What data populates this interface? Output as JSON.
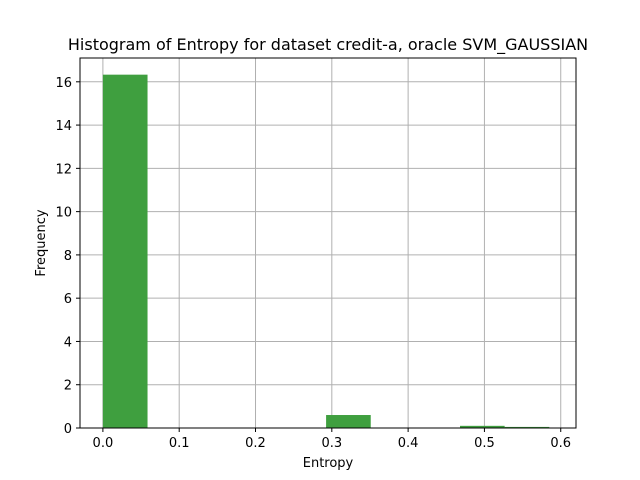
{
  "chart_data": {
    "type": "bar",
    "title": "Histogram of Entropy for dataset credit-a, oracle SVM_GAUSSIAN",
    "xlabel": "Entropy",
    "ylabel": "Frequency",
    "xlim": [
      -0.03,
      0.62
    ],
    "ylim": [
      0,
      17.1
    ],
    "xticks": [
      "0.0",
      "0.1",
      "0.2",
      "0.3",
      "0.4",
      "0.5",
      "0.6"
    ],
    "xtick_values": [
      0.0,
      0.1,
      0.2,
      0.3,
      0.4,
      0.5,
      0.6
    ],
    "yticks": [
      "0",
      "2",
      "4",
      "6",
      "8",
      "10",
      "12",
      "14",
      "16"
    ],
    "ytick_values": [
      0,
      2,
      4,
      6,
      8,
      10,
      12,
      14,
      16
    ],
    "grid": true,
    "bar_color": "#3f9f3f",
    "bins": [
      {
        "x0": 0.0,
        "x1": 0.0585,
        "value": 16.33
      },
      {
        "x0": 0.0585,
        "x1": 0.117,
        "value": 0
      },
      {
        "x0": 0.117,
        "x1": 0.1755,
        "value": 0
      },
      {
        "x0": 0.1755,
        "x1": 0.234,
        "value": 0
      },
      {
        "x0": 0.234,
        "x1": 0.2925,
        "value": 0
      },
      {
        "x0": 0.2925,
        "x1": 0.351,
        "value": 0.6
      },
      {
        "x0": 0.351,
        "x1": 0.4095,
        "value": 0
      },
      {
        "x0": 0.4095,
        "x1": 0.468,
        "value": 0
      },
      {
        "x0": 0.468,
        "x1": 0.5265,
        "value": 0.1
      },
      {
        "x0": 0.5265,
        "x1": 0.585,
        "value": 0.05
      }
    ]
  }
}
